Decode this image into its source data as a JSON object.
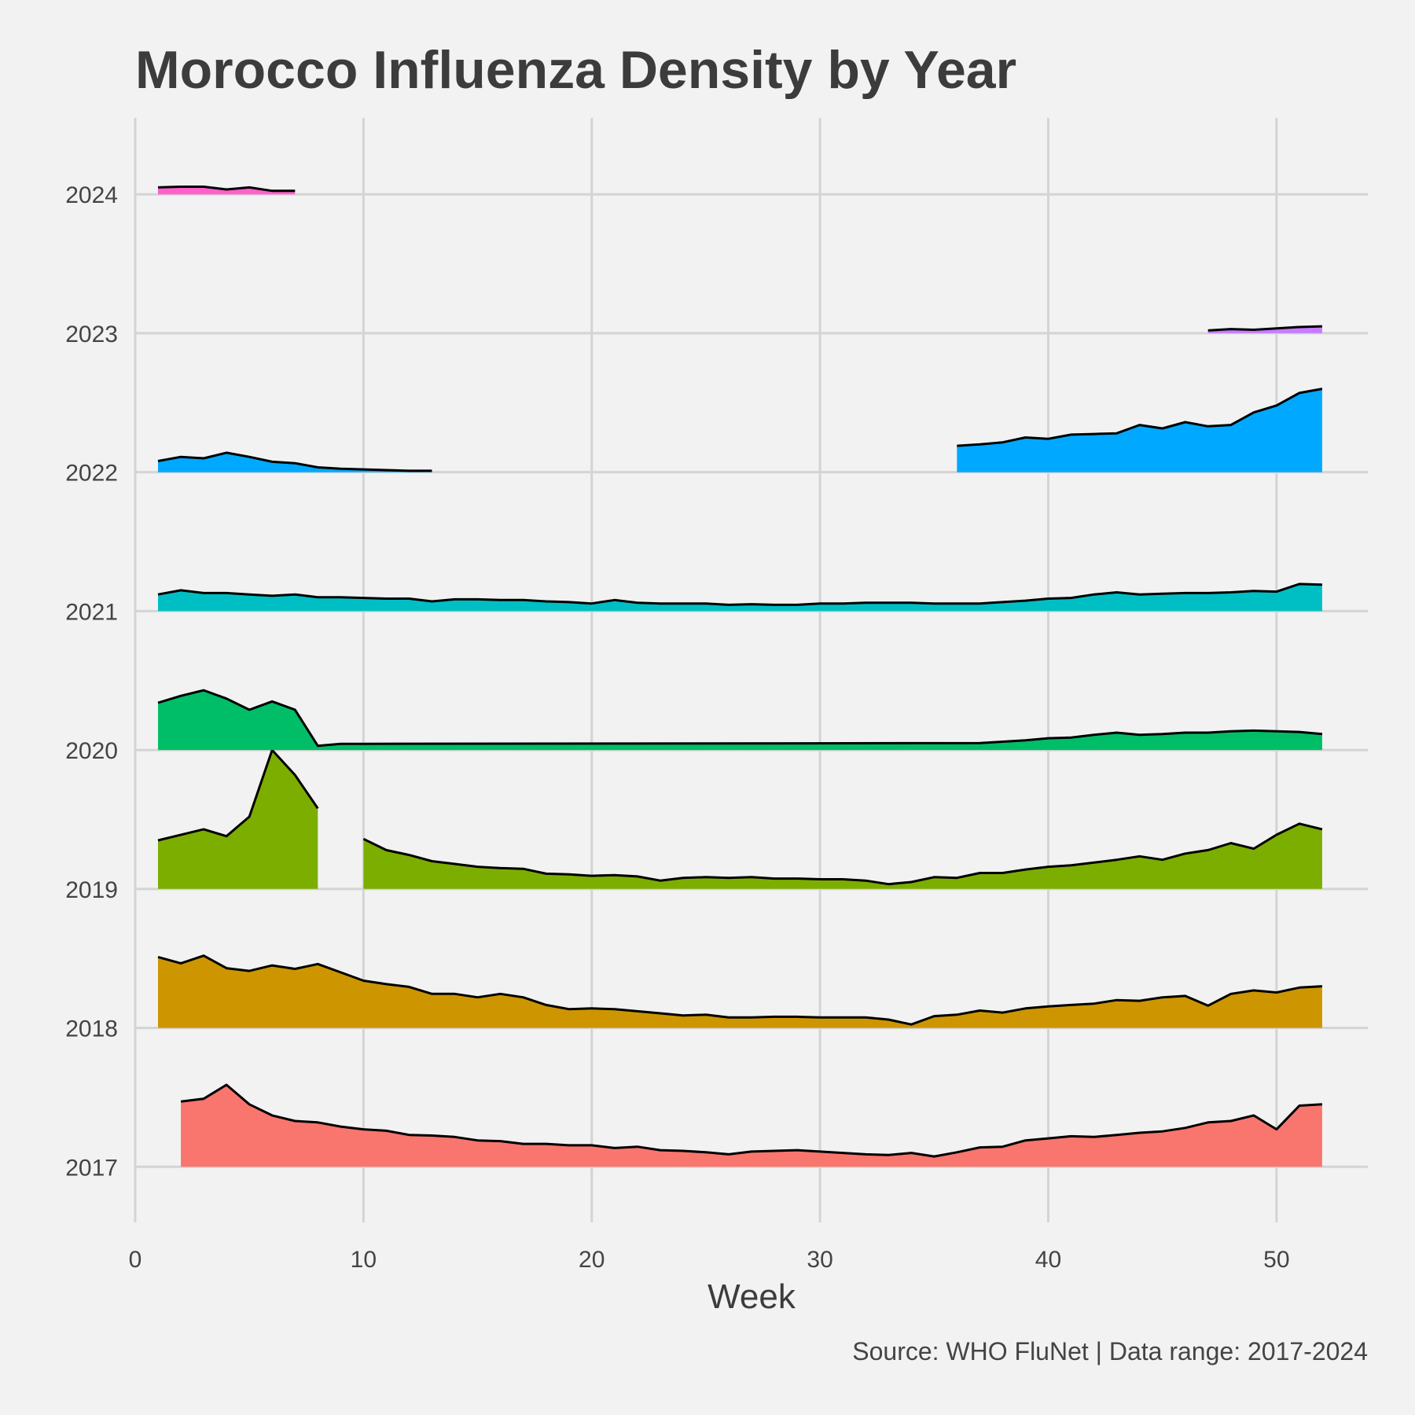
{
  "chart_data": {
    "type": "area",
    "title": "Morocco Influenza Density by Year",
    "xlabel": "Week",
    "ylabel": "",
    "caption": "Source: WHO FluNet | Data range: 2017-2024",
    "xlim": [
      0,
      54
    ],
    "ylim": [
      2016.6,
      2024.55
    ],
    "x_ticks": [
      0,
      10,
      20,
      30,
      40,
      50
    ],
    "y_ticks": [
      2017,
      2018,
      2019,
      2020,
      2021,
      2022,
      2023,
      2024
    ],
    "grid": true,
    "legend": "none",
    "series": [
      {
        "year": 2017,
        "color": "#F8766D",
        "segments": [
          {
            "x": [
              2,
              3,
              4,
              5,
              6,
              7,
              8,
              9,
              10,
              11,
              12,
              13,
              14,
              15,
              16,
              17,
              18,
              19,
              20,
              21,
              22,
              23,
              24,
              25,
              26,
              27,
              28,
              29,
              30,
              31,
              32,
              33,
              34,
              35,
              36,
              37,
              38,
              39,
              40,
              41,
              42,
              43,
              44,
              45,
              46,
              47,
              48,
              49,
              50,
              51,
              52
            ],
            "density": [
              0.47,
              0.49,
              0.59,
              0.45,
              0.37,
              0.33,
              0.32,
              0.29,
              0.27,
              0.26,
              0.23,
              0.225,
              0.215,
              0.19,
              0.185,
              0.165,
              0.165,
              0.155,
              0.155,
              0.135,
              0.145,
              0.12,
              0.115,
              0.105,
              0.09,
              0.11,
              0.115,
              0.12,
              0.11,
              0.1,
              0.09,
              0.085,
              0.1,
              0.075,
              0.105,
              0.14,
              0.145,
              0.19,
              0.205,
              0.22,
              0.215,
              0.23,
              0.245,
              0.255,
              0.28,
              0.32,
              0.33,
              0.37,
              0.27,
              0.44,
              0.45
            ]
          }
        ]
      },
      {
        "year": 2018,
        "color": "#CD9600",
        "segments": [
          {
            "x": [
              1,
              2,
              3,
              4,
              5,
              6,
              7,
              8,
              9,
              10,
              11,
              12,
              13,
              14,
              15,
              16,
              17,
              18,
              19,
              20,
              21,
              22,
              23,
              24,
              25,
              26,
              27,
              28,
              29,
              30,
              31,
              32,
              33,
              34,
              35,
              36,
              37,
              38,
              39,
              40,
              41,
              42,
              43,
              44,
              45,
              46,
              47,
              48,
              49,
              50,
              51,
              52
            ],
            "density": [
              0.51,
              0.465,
              0.52,
              0.43,
              0.41,
              0.45,
              0.425,
              0.46,
              0.4,
              0.34,
              0.315,
              0.295,
              0.245,
              0.245,
              0.22,
              0.245,
              0.22,
              0.165,
              0.135,
              0.14,
              0.135,
              0.12,
              0.105,
              0.09,
              0.095,
              0.075,
              0.075,
              0.08,
              0.08,
              0.075,
              0.075,
              0.075,
              0.06,
              0.025,
              0.085,
              0.095,
              0.125,
              0.11,
              0.14,
              0.155,
              0.165,
              0.175,
              0.2,
              0.195,
              0.22,
              0.23,
              0.16,
              0.245,
              0.27,
              0.255,
              0.29,
              0.3
            ]
          }
        ]
      },
      {
        "year": 2019,
        "color": "#7CAE00",
        "segments": [
          {
            "x": [
              1,
              2,
              3,
              4,
              5,
              6,
              7,
              8
            ],
            "density": [
              0.35,
              0.39,
              0.43,
              0.38,
              0.52,
              1.0,
              0.82,
              0.58
            ]
          },
          {
            "x": [
              10,
              11,
              12,
              13,
              14,
              15,
              16,
              17,
              18,
              19,
              20,
              21,
              22,
              23,
              24,
              25,
              26,
              27,
              28,
              29,
              30,
              31,
              32,
              33,
              34,
              35,
              36,
              37,
              38,
              39,
              40,
              41,
              42,
              43,
              44,
              45,
              46,
              47,
              48,
              49,
              50,
              51,
              52
            ],
            "density": [
              0.36,
              0.28,
              0.245,
              0.2,
              0.18,
              0.16,
              0.15,
              0.145,
              0.11,
              0.105,
              0.095,
              0.1,
              0.09,
              0.06,
              0.08,
              0.085,
              0.08,
              0.085,
              0.075,
              0.075,
              0.07,
              0.07,
              0.06,
              0.035,
              0.05,
              0.085,
              0.08,
              0.115,
              0.115,
              0.14,
              0.16,
              0.17,
              0.19,
              0.21,
              0.235,
              0.21,
              0.255,
              0.28,
              0.33,
              0.29,
              0.39,
              0.47,
              0.43
            ]
          }
        ]
      },
      {
        "year": 2020,
        "color": "#00BE67",
        "segments": [
          {
            "x": [
              1,
              2,
              3,
              4,
              5,
              6,
              7,
              8,
              9,
              10,
              37,
              38,
              39,
              40,
              41,
              42,
              43,
              44,
              45,
              46,
              47,
              48,
              49,
              50,
              51,
              52
            ],
            "density": [
              0.34,
              0.39,
              0.43,
              0.37,
              0.29,
              0.35,
              0.29,
              0.03,
              0.045,
              0.045,
              0.05,
              0.06,
              0.07,
              0.085,
              0.09,
              0.11,
              0.125,
              0.11,
              0.115,
              0.125,
              0.125,
              0.135,
              0.14,
              0.135,
              0.13,
              0.115
            ]
          }
        ]
      },
      {
        "year": 2021,
        "color": "#00BFC4",
        "segments": [
          {
            "x": [
              1,
              2,
              3,
              4,
              5,
              6,
              7,
              8,
              9,
              10,
              11,
              12,
              13,
              14,
              15,
              16,
              17,
              18,
              19,
              20,
              21,
              22,
              23,
              24,
              25,
              26,
              27,
              28,
              29,
              30,
              31,
              32,
              33,
              34,
              35,
              36,
              37,
              38,
              39,
              40,
              41,
              42,
              43,
              44,
              45,
              46,
              47,
              48,
              49,
              50,
              51,
              52
            ],
            "density": [
              0.12,
              0.15,
              0.13,
              0.13,
              0.12,
              0.11,
              0.12,
              0.1,
              0.1,
              0.095,
              0.09,
              0.09,
              0.07,
              0.085,
              0.085,
              0.08,
              0.08,
              0.07,
              0.065,
              0.055,
              0.08,
              0.06,
              0.055,
              0.055,
              0.055,
              0.045,
              0.05,
              0.045,
              0.045,
              0.055,
              0.055,
              0.06,
              0.06,
              0.06,
              0.055,
              0.055,
              0.055,
              0.065,
              0.075,
              0.09,
              0.095,
              0.12,
              0.135,
              0.12,
              0.125,
              0.13,
              0.13,
              0.135,
              0.145,
              0.14,
              0.195,
              0.19
            ]
          }
        ]
      },
      {
        "year": 2022,
        "color": "#00A9FF",
        "segments": [
          {
            "x": [
              1,
              2,
              3,
              4,
              5,
              6,
              7,
              8,
              9,
              10,
              11,
              12,
              13
            ],
            "density": [
              0.08,
              0.11,
              0.1,
              0.14,
              0.11,
              0.075,
              0.065,
              0.035,
              0.025,
              0.02,
              0.015,
              0.01,
              0.01
            ]
          },
          {
            "x": [
              36,
              37,
              38,
              39,
              40,
              41,
              42,
              43,
              44,
              45,
              46,
              47,
              48,
              49,
              50,
              51,
              52
            ],
            "density": [
              0.19,
              0.2,
              0.215,
              0.25,
              0.24,
              0.27,
              0.275,
              0.28,
              0.34,
              0.315,
              0.36,
              0.33,
              0.34,
              0.43,
              0.48,
              0.57,
              0.6
            ]
          }
        ]
      },
      {
        "year": 2023,
        "color": "#C77CFF",
        "segments": [
          {
            "x": [
              47,
              48,
              49,
              50,
              51,
              52
            ],
            "density": [
              0.02,
              0.03,
              0.025,
              0.035,
              0.045,
              0.05
            ]
          }
        ]
      },
      {
        "year": 2024,
        "color": "#FF61CC",
        "segments": [
          {
            "x": [
              1,
              2,
              3,
              4,
              5,
              6,
              7
            ],
            "density": [
              0.05,
              0.055,
              0.055,
              0.035,
              0.05,
              0.025,
              0.025
            ]
          }
        ]
      }
    ]
  }
}
